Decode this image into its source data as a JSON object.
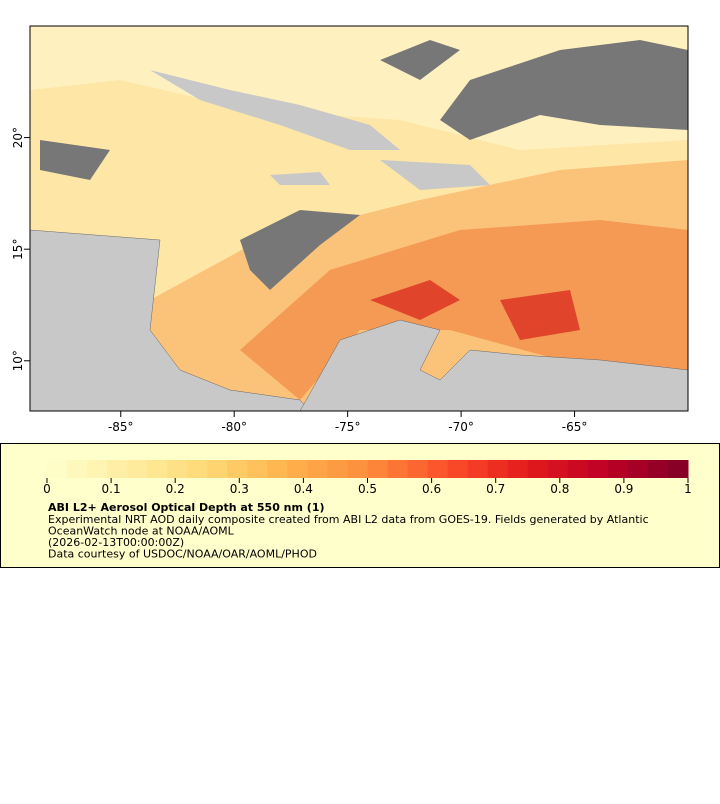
{
  "map": {
    "lon_range": [
      -89,
      -60
    ],
    "lat_range": [
      7.75,
      25
    ],
    "lon_ticks": [
      {
        "value": -85,
        "label": "-85°"
      },
      {
        "value": -80,
        "label": "-80°"
      },
      {
        "value": -75,
        "label": "-75°"
      },
      {
        "value": -70,
        "label": "-70°"
      },
      {
        "value": -65,
        "label": "-65°"
      }
    ],
    "lat_ticks": [
      {
        "value": 20,
        "label": "20°"
      },
      {
        "value": 15,
        "label": "15°"
      },
      {
        "value": 10,
        "label": "10°"
      }
    ]
  },
  "colorbar": {
    "range": [
      0,
      1
    ],
    "ticks": [
      0,
      0.1,
      0.2,
      0.3,
      0.4,
      0.5,
      0.6,
      0.7,
      0.8,
      0.9,
      1
    ],
    "colors": [
      "#ffffcc",
      "#ffeda0",
      "#fed976",
      "#feb24c",
      "#fd8d3c",
      "#fc4e2a",
      "#e31a1c",
      "#bd0026",
      "#800026"
    ]
  },
  "legend": {
    "title": "ABI L2+ Aerosol Optical Depth at 550 nm (1)",
    "lines": [
      "Experimental NRT AOD daily composite created from ABI L2 data from GOES-19. Fields generated by Atlantic",
      "OceanWatch node at NOAA/AOML",
      "(2026-02-13T00:00:00Z)",
      "Data courtesy of USDOC/NOAA/OAR/AOML/PHOD"
    ]
  }
}
